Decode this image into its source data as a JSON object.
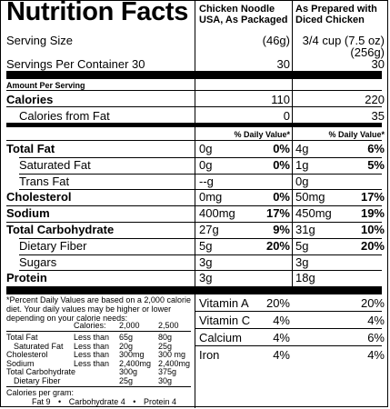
{
  "header": {
    "title": "Nutrition Facts",
    "col1_heading": [
      "Chicken Noodle",
      "USA, As Packaged"
    ],
    "col2_heading": [
      "As Prepared with",
      "Diced Chicken"
    ]
  },
  "serving": {
    "size_label": "Serving Size",
    "size_col1": "(46g)",
    "size_col2_line1": "3/4 cup (7.5 oz)",
    "size_col2_line2": "(256g)",
    "per_container_label": "Servings Per Container 30",
    "per_container_col1": "30",
    "per_container_col2": "30"
  },
  "amount_per_serving": "Amount Per Serving",
  "calories": {
    "label": "Calories",
    "col1": "110",
    "col2": "220"
  },
  "calories_fat": {
    "label": "Calories from Fat",
    "col1": "0",
    "col2": "35"
  },
  "dv_header": {
    "col1": "% Daily Value*",
    "col2": "% Daily Value*"
  },
  "nutrients": [
    {
      "label": "Total Fat",
      "bold": true,
      "indent": false,
      "a1": "0g",
      "p1": "0%",
      "a2": "4g",
      "p2": "6%"
    },
    {
      "label": "Saturated Fat",
      "bold": false,
      "indent": true,
      "a1": "0g",
      "p1": "0%",
      "a2": "1g",
      "p2": "5%"
    },
    {
      "label": "Trans Fat",
      "bold": false,
      "indent": true,
      "a1": "--g",
      "p1": "",
      "a2": "0g",
      "p2": ""
    },
    {
      "label": "Cholesterol",
      "bold": true,
      "indent": false,
      "a1": "0mg",
      "p1": "0%",
      "a2": "50mg",
      "p2": "17%"
    },
    {
      "label": "Sodium",
      "bold": true,
      "indent": false,
      "a1": "400mg",
      "p1": "17%",
      "a2": "450mg",
      "p2": "19%"
    },
    {
      "label": "Total Carbohydrate",
      "bold": true,
      "indent": false,
      "a1": "27g",
      "p1": "9%",
      "a2": "31g",
      "p2": "10%"
    },
    {
      "label": "Dietary Fiber",
      "bold": false,
      "indent": true,
      "a1": "5g",
      "p1": "20%",
      "a2": "5g",
      "p2": "20%"
    },
    {
      "label": "Sugars",
      "bold": false,
      "indent": true,
      "a1": "3g",
      "p1": "",
      "a2": "3g",
      "p2": ""
    },
    {
      "label": "Protein",
      "bold": true,
      "indent": false,
      "a1": "3g",
      "p1": "",
      "a2": "18g",
      "p2": ""
    }
  ],
  "footnote": [
    "*Percent Daily Values are based on a 2,000 calorie",
    "diet. Your daily values may be higher or lower",
    "depending on your calorie needs:"
  ],
  "footnote_table": {
    "header": {
      "label": "",
      "qual": "Calories:",
      "v1": "2,000",
      "v2": "2,500"
    },
    "rows": [
      {
        "label": "Total Fat",
        "qual": "Less than",
        "v1": "65g",
        "v2": "80g"
      },
      {
        "label": "Saturated Fat",
        "qual": "Less than",
        "v1": "20g",
        "v2": "25g"
      },
      {
        "label": "Cholesterol",
        "qual": "Less than",
        "v1": "300mg",
        "v2": "300 mg"
      },
      {
        "label": "Sodium",
        "qual": "Less than",
        "v1": "2,400mg",
        "v2": "2,400mg"
      },
      {
        "label": "Total Carbohydrate",
        "qual": "",
        "v1": "300g",
        "v2": "375g"
      },
      {
        "label": "Dietary Fiber",
        "qual": "",
        "v1": "25g",
        "v2": "30g"
      }
    ]
  },
  "calories_per_gram": {
    "label": "Calories per gram:",
    "line": [
      "Fat 9",
      "•",
      "Carbohydrate 4",
      "•",
      "Protein 4"
    ]
  },
  "vitamins": [
    {
      "label": "Vitamin A",
      "v1": "20%",
      "v2": "20%"
    },
    {
      "label": "Vitamin C",
      "v1": "4%",
      "v2": "4%"
    },
    {
      "label": "Calcium",
      "v1": "4%",
      "v2": "6%"
    },
    {
      "label": "Iron",
      "v1": "4%",
      "v2": "4%"
    }
  ]
}
